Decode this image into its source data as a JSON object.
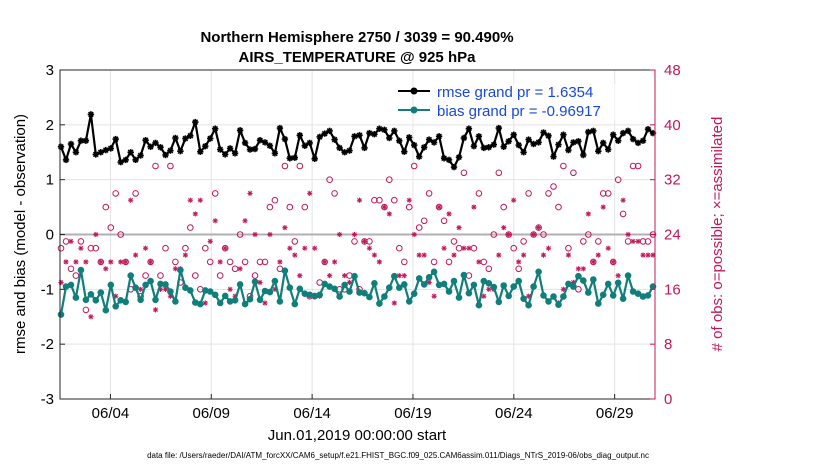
{
  "chart_data": {
    "type": "line",
    "title": "Northern Hemisphere 2750 / 3039 = 90.490%",
    "subtitle": "AIRS_TEMPERATURE @ 925 hPa",
    "xlabel": "Jun.01,2019 00:00:00 start",
    "ylabel": "rmse and bias (model - observation)",
    "y2label": "# of obs: o=possible; ×=assimilated",
    "footnote": "data file: /Users/raeder/DAI/ATM_forcXX/CAM6_setup/f.e21.FHIST_BGC.f09_025.CAM6assim.011/Diags_NTrS_2019-06/obs_diag_output.nc",
    "x_ticks": [
      "06/04",
      "06/09",
      "06/14",
      "06/19",
      "06/24",
      "06/29"
    ],
    "x_tick_days": [
      4,
      9,
      14,
      19,
      24,
      29
    ],
    "xlim": [
      1.5,
      31.0
    ],
    "ylim": [
      -3,
      3
    ],
    "y_ticks": [
      "-3",
      "-2",
      "-1",
      "0",
      "1",
      "2",
      "3"
    ],
    "y2lim": [
      0,
      48
    ],
    "y2_ticks": [
      "0",
      "8",
      "16",
      "24",
      "32",
      "40",
      "48"
    ],
    "grid": true,
    "zero_line": 0,
    "legend_position": "top-right",
    "n_points": 120,
    "series": [
      {
        "name": "rmse grand pr = 1.6354",
        "color": "#000000",
        "marker": "asterisk",
        "values": [
          1.6,
          1.36,
          1.65,
          1.5,
          1.71,
          1.71,
          2.19,
          1.46,
          1.5,
          1.54,
          1.57,
          1.74,
          1.32,
          1.36,
          1.5,
          1.36,
          1.44,
          1.72,
          1.6,
          1.67,
          1.59,
          1.45,
          1.53,
          1.76,
          1.52,
          1.75,
          1.8,
          2.05,
          1.51,
          1.61,
          1.75,
          1.93,
          1.55,
          1.46,
          1.57,
          1.48,
          1.9,
          1.67,
          1.55,
          1.56,
          1.72,
          1.68,
          1.62,
          1.48,
          1.94,
          1.74,
          1.39,
          1.4,
          1.81,
          1.62,
          1.67,
          1.38,
          1.78,
          1.84,
          1.89,
          1.73,
          1.58,
          1.5,
          1.53,
          1.79,
          1.81,
          1.58,
          1.85,
          1.83,
          1.93,
          1.91,
          1.76,
          1.89,
          1.71,
          1.51,
          1.77,
          1.63,
          1.42,
          1.59,
          1.73,
          1.68,
          1.79,
          1.39,
          1.36,
          1.23,
          1.41,
          1.76,
          1.93,
          1.61,
          1.79,
          1.58,
          1.59,
          1.64,
          1.94,
          1.6,
          1.7,
          1.82,
          1.63,
          1.5,
          1.73,
          1.65,
          1.68,
          1.86,
          1.8,
          1.42,
          1.64,
          1.82,
          1.54,
          1.68,
          1.7,
          1.45,
          1.87,
          1.89,
          1.52,
          1.67,
          1.55,
          1.82,
          1.71,
          1.85,
          1.89,
          1.74,
          1.67,
          1.71,
          1.92,
          1.85
        ]
      },
      {
        "name": "bias grand pr = -0.96917",
        "color": "#107f7b",
        "marker": "circle",
        "values": [
          -1.46,
          -0.95,
          -0.92,
          -1.15,
          -0.65,
          -1.19,
          -1.09,
          -1.2,
          -1.06,
          -1.38,
          -0.92,
          -1.31,
          -1.2,
          -1.23,
          -0.75,
          -0.97,
          -1.19,
          -0.92,
          -0.85,
          -1.19,
          -0.9,
          -0.91,
          -1.04,
          -1.22,
          -0.65,
          -0.97,
          -1.02,
          -1.24,
          -1.27,
          -1.02,
          -1.04,
          -1.1,
          -1.25,
          -1.12,
          -1.22,
          -1.2,
          -0.91,
          -1.27,
          -1.18,
          -0.86,
          -1.19,
          -1.03,
          -1.05,
          -0.85,
          -1.22,
          -0.66,
          -0.97,
          -1.27,
          -0.99,
          -1.08,
          -1.1,
          -1.12,
          -1.1,
          -0.9,
          -0.95,
          -0.99,
          -1.13,
          -0.92,
          -1.04,
          -0.76,
          -1.06,
          -1.07,
          -1.14,
          -0.89,
          -1.26,
          -1.13,
          -0.97,
          -0.76,
          -0.97,
          -0.91,
          -1.22,
          -1.08,
          -0.8,
          -0.91,
          -0.78,
          -0.68,
          -0.92,
          -0.9,
          -1.04,
          -0.85,
          -1.15,
          -0.74,
          -1.07,
          -0.92,
          -1.29,
          -0.85,
          -0.89,
          -0.96,
          -1.23,
          -0.93,
          -1.12,
          -0.95,
          -0.85,
          -1.17,
          -1.29,
          -0.95,
          -0.68,
          -1.11,
          -1.22,
          -1.13,
          -1.28,
          -1.13,
          -0.9,
          -0.95,
          -0.76,
          -0.84,
          -1.06,
          -0.82,
          -1.26,
          -1.1,
          -0.9,
          -1.11,
          -0.88,
          -1.17,
          -0.75,
          -1.04,
          -1.08,
          -1.13,
          -1.11,
          -0.95
        ]
      }
    ],
    "obs_possible": {
      "name": "o=possible",
      "color": "#c0185a",
      "values": [
        22,
        23,
        19,
        18,
        23,
        13,
        22,
        22,
        20,
        28,
        25,
        30,
        24,
        20,
        16,
        30,
        15,
        18,
        20,
        34,
        18,
        22,
        34,
        20,
        17,
        22,
        25,
        18,
        16,
        22,
        20,
        30,
        18,
        22,
        20,
        19,
        24,
        20,
        15,
        18,
        20,
        20,
        28,
        29,
        19,
        34,
        28,
        23,
        34,
        28,
        15,
        15,
        17,
        20,
        32,
        30,
        16,
        16,
        18,
        23,
        16,
        23,
        23,
        29,
        29,
        28,
        32,
        29,
        22,
        20,
        28,
        34,
        25,
        26,
        30,
        20,
        28,
        26,
        20,
        23,
        22,
        33,
        18,
        22,
        30,
        20,
        19,
        24,
        33,
        28,
        24,
        22,
        19,
        23,
        30,
        24,
        25,
        24,
        30,
        31,
        28,
        34,
        22,
        33,
        16,
        23,
        24,
        20,
        23,
        30,
        30,
        20,
        32,
        27,
        23,
        34,
        34,
        23,
        23,
        24
      ]
    },
    "obs_assimilated": {
      "name": "×=assimilated",
      "color": "#c0185a",
      "values": [
        17,
        20,
        23,
        20,
        22,
        20,
        12,
        24,
        20,
        19,
        20,
        15,
        20,
        20,
        29,
        21,
        16,
        22,
        20,
        13,
        16,
        16,
        15,
        19,
        19,
        21,
        29,
        27,
        29,
        14,
        23,
        26,
        20,
        22,
        16,
        15,
        19,
        26,
        30,
        24,
        17,
        14,
        24,
        16,
        20,
        25,
        22,
        21,
        18,
        22,
        30,
        22,
        15,
        20,
        18,
        20,
        24,
        18,
        17,
        24,
        29,
        23,
        22,
        21,
        20,
        28,
        27,
        14,
        18,
        18,
        29,
        24,
        21,
        21,
        17,
        15,
        28,
        22,
        27,
        21,
        25,
        22,
        22,
        28,
        20,
        15,
        16,
        16,
        21,
        25,
        24,
        29,
        20,
        21,
        15,
        24,
        25,
        21,
        22,
        15,
        14,
        16,
        21,
        17,
        19,
        19,
        27,
        20,
        21,
        28,
        22,
        20,
        18,
        29,
        24,
        23,
        23,
        21,
        21,
        21
      ]
    }
  }
}
